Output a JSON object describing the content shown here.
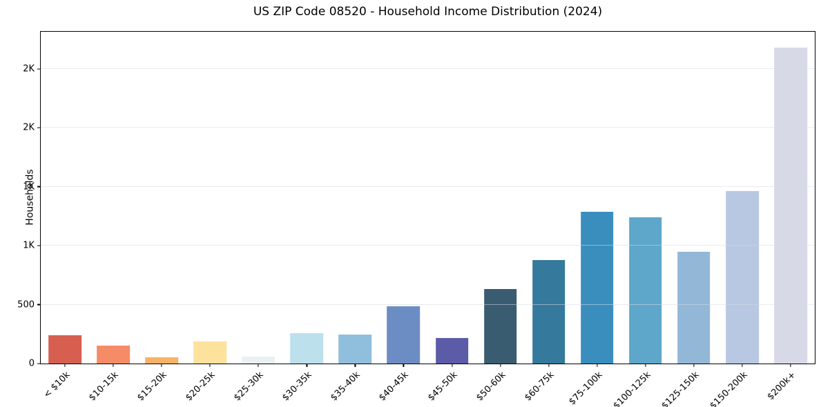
{
  "chart_data": {
    "type": "bar",
    "title": "US ZIP Code 08520 - Household Income Distribution (2024)",
    "xlabel": "",
    "ylabel": "Households",
    "categories": [
      "< $10k",
      "$10-15k",
      "$15-20k",
      "$20-25k",
      "$25-30k",
      "$30-35k",
      "$35-40k",
      "$40-45k",
      "$45-50k",
      "$50-60k",
      "$60-75k",
      "$75-100k",
      "$100-125k",
      "$125-150k",
      "$150-200k",
      "$200k+"
    ],
    "values": [
      240,
      150,
      50,
      190,
      60,
      255,
      245,
      485,
      215,
      630,
      880,
      1290,
      1240,
      945,
      1460,
      2680
    ],
    "bar_colors": [
      "#d65f50",
      "#f58c67",
      "#f8b268",
      "#fce29c",
      "#e9f1f2",
      "#bce0ec",
      "#90bedd",
      "#6c8dc4",
      "#5c5ba8",
      "#3a5c70",
      "#35799c",
      "#398ebe",
      "#5ea6ca",
      "#93b7d7",
      "#b8c8e2",
      "#d7dae6"
    ],
    "ylim": [
      0,
      2814
    ],
    "yticks": [
      {
        "value": 0,
        "label": "0"
      },
      {
        "value": 500,
        "label": "500"
      },
      {
        "value": 1000,
        "label": "1K"
      },
      {
        "value": 1500,
        "label": "1K"
      },
      {
        "value": 2000,
        "label": "2K"
      },
      {
        "value": 2500,
        "label": "2K"
      }
    ],
    "grid": "horizontal",
    "gridline_color": "#e8e8ee",
    "axis_color": "#000000",
    "background": "#ffffff",
    "legend": "none",
    "bar_width_fraction": 0.68
  }
}
